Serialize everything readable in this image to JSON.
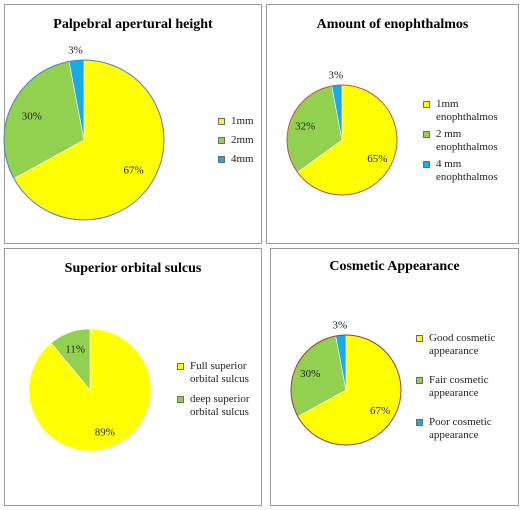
{
  "chart_data": [
    {
      "type": "pie",
      "title": "Palpebral apertural height",
      "categories": [
        "1mm",
        "2mm",
        "4mm"
      ],
      "values": [
        67,
        30,
        3
      ],
      "labels": [
        "67%",
        "30%",
        "3%"
      ],
      "colors": [
        "#ffff00",
        "#92d050",
        "#1aabe6"
      ],
      "outline": "#4a7fc1",
      "legend_position": "right"
    },
    {
      "type": "pie",
      "title": "Amount of enophthalmos",
      "categories": [
        "1mm enophthalmos",
        "2 mm enophthalmos",
        "4 mm enophthalmos"
      ],
      "values": [
        65,
        32,
        3
      ],
      "labels": [
        "65%",
        "32%",
        "3%"
      ],
      "colors": [
        "#ffff00",
        "#92d050",
        "#1aabe6"
      ],
      "outline": "#c0504d",
      "legend_position": "right"
    },
    {
      "type": "pie",
      "title": "Superior orbital sulcus",
      "categories": [
        "Full superior orbital sulcus",
        "deep superior orbital sulcus"
      ],
      "values": [
        89,
        11
      ],
      "labels": [
        "89%",
        "11%"
      ],
      "colors": [
        "#ffff00",
        "#92d050"
      ],
      "outline": "none",
      "legend_position": "right"
    },
    {
      "type": "pie",
      "title": "Cosmetic Appearance",
      "categories": [
        "Good cosmetic appearance",
        "Fair cosmetic appearance",
        "Poor cosmetic appearance"
      ],
      "values": [
        67,
        30,
        3
      ],
      "labels": [
        "67%",
        "30%",
        "3%"
      ],
      "colors": [
        "#ffff00",
        "#92d050",
        "#1aabe6"
      ],
      "outline": "#9b3b3b",
      "legend_position": "right"
    }
  ]
}
